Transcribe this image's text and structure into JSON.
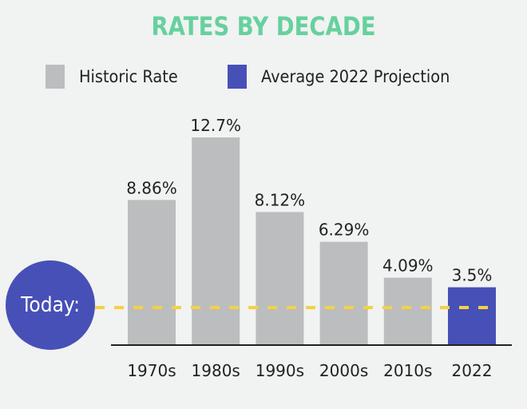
{
  "chart_data": {
    "type": "bar",
    "title": "RATES BY DECADE",
    "categories": [
      "1970s",
      "1980s",
      "1990s",
      "2000s",
      "2010s",
      "2022"
    ],
    "values": [
      8.86,
      12.7,
      8.12,
      6.29,
      4.09,
      3.5
    ],
    "value_labels": [
      "8.86%",
      "12.7%",
      "8.12%",
      "6.29%",
      "4.09%",
      "3.5%"
    ],
    "series_membership": [
      "Historic Rate",
      "Historic Rate",
      "Historic Rate",
      "Historic Rate",
      "Historic Rate",
      "Average 2022 Projection"
    ],
    "legend": [
      {
        "label": "Historic Rate",
        "color": "#bcbdbf"
      },
      {
        "label": "Average 2022 Projection",
        "color": "#4750b6"
      }
    ],
    "legend_position": "top",
    "xlabel": "",
    "ylabel": "",
    "ylim": [
      0,
      12.7
    ],
    "grid": false,
    "reference_line": {
      "label": "Today:",
      "value": 3.0,
      "color": "#f5d142",
      "style": "dashed"
    }
  },
  "colors": {
    "title": "#66d19e",
    "historic": "#bcbdbf",
    "projection": "#4750b6",
    "today_line": "#f5d142",
    "background": "#f1f2f2"
  }
}
